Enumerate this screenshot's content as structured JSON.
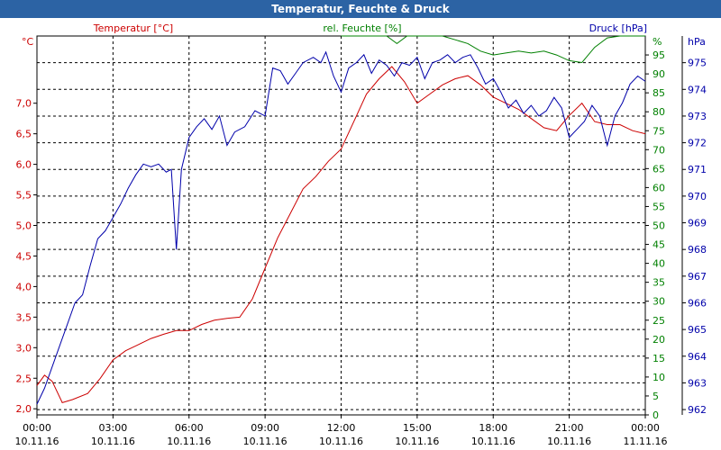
{
  "window": {
    "title": "Temperatur, Feuchte & Druck"
  },
  "colors": {
    "temperature": "#cc0000",
    "humidity": "#008000",
    "pressure": "#0000aa",
    "axis": "#000000",
    "titlebar": "#2c63a4"
  },
  "chart_data": {
    "type": "line",
    "title": "Temperatur, Feuchte & Druck",
    "grid": true,
    "x_ticks": [
      {
        "time": "00:00",
        "date": "10.11.16"
      },
      {
        "time": "03:00",
        "date": "10.11.16"
      },
      {
        "time": "06:00",
        "date": "10.11.16"
      },
      {
        "time": "09:00",
        "date": "10.11.16"
      },
      {
        "time": "12:00",
        "date": "10.11.16"
      },
      {
        "time": "15:00",
        "date": "10.11.16"
      },
      {
        "time": "18:00",
        "date": "10.11.16"
      },
      {
        "time": "21:00",
        "date": "10.11.16"
      },
      {
        "time": "00:00",
        "date": "11.11.16"
      }
    ],
    "xlim_hours": [
      0,
      24
    ],
    "axes": {
      "temperature": {
        "unit": "°C",
        "range": [
          1.9,
          8.1
        ],
        "ticks": [
          "2,0",
          "2,5",
          "3,0",
          "3,5",
          "4,0",
          "4,5",
          "5,0",
          "5,5",
          "6,0",
          "6,5",
          "7,0"
        ]
      },
      "humidity": {
        "unit": "%",
        "range": [
          0,
          100
        ],
        "ticks": [
          "0",
          "5",
          "10",
          "15",
          "20",
          "25",
          "30",
          "35",
          "40",
          "45",
          "50",
          "55",
          "60",
          "65",
          "70",
          "75",
          "80",
          "85",
          "90",
          "95"
        ]
      },
      "pressure": {
        "unit": "hPa",
        "range": [
          961.8,
          976
        ],
        "ticks": [
          "962",
          "963",
          "964",
          "965",
          "966",
          "967",
          "968",
          "969",
          "970",
          "971",
          "972",
          "973",
          "974",
          "975"
        ]
      }
    },
    "series": [
      {
        "name": "Temperatur [°C]",
        "axis": "temperature",
        "points": [
          [
            0,
            2.38
          ],
          [
            0.3,
            2.55
          ],
          [
            0.6,
            2.45
          ],
          [
            1.0,
            2.1
          ],
          [
            1.4,
            2.15
          ],
          [
            2.0,
            2.25
          ],
          [
            2.5,
            2.5
          ],
          [
            3.0,
            2.8
          ],
          [
            3.5,
            2.95
          ],
          [
            4.0,
            3.05
          ],
          [
            4.5,
            3.15
          ],
          [
            5.0,
            3.22
          ],
          [
            5.5,
            3.28
          ],
          [
            6.0,
            3.28
          ],
          [
            6.5,
            3.38
          ],
          [
            7.0,
            3.45
          ],
          [
            7.5,
            3.48
          ],
          [
            8.0,
            3.5
          ],
          [
            8.5,
            3.8
          ],
          [
            9.0,
            4.3
          ],
          [
            9.5,
            4.8
          ],
          [
            10.0,
            5.2
          ],
          [
            10.5,
            5.6
          ],
          [
            11.0,
            5.8
          ],
          [
            11.5,
            6.05
          ],
          [
            12.0,
            6.25
          ],
          [
            12.5,
            6.7
          ],
          [
            13.0,
            7.15
          ],
          [
            13.5,
            7.4
          ],
          [
            14.0,
            7.6
          ],
          [
            14.5,
            7.35
          ],
          [
            15.0,
            7.0
          ],
          [
            15.5,
            7.15
          ],
          [
            16.0,
            7.3
          ],
          [
            16.5,
            7.4
          ],
          [
            17.0,
            7.45
          ],
          [
            17.5,
            7.3
          ],
          [
            18.0,
            7.1
          ],
          [
            18.5,
            7.0
          ],
          [
            19.0,
            6.9
          ],
          [
            19.5,
            6.75
          ],
          [
            20.0,
            6.6
          ],
          [
            20.5,
            6.55
          ],
          [
            21.0,
            6.8
          ],
          [
            21.5,
            7.0
          ],
          [
            22.0,
            6.7
          ],
          [
            22.5,
            6.65
          ],
          [
            23.0,
            6.65
          ],
          [
            23.5,
            6.55
          ],
          [
            24.0,
            6.5
          ]
        ]
      },
      {
        "name": "rel. Feuchte [%]",
        "axis": "humidity",
        "points": [
          [
            12.0,
            100
          ],
          [
            13.0,
            100
          ],
          [
            13.8,
            100
          ],
          [
            14.2,
            98
          ],
          [
            14.6,
            100
          ],
          [
            15.0,
            101
          ],
          [
            15.5,
            103
          ],
          [
            16.0,
            102
          ],
          [
            16.5,
            99
          ],
          [
            17.0,
            98
          ],
          [
            17.5,
            96
          ],
          [
            18.0,
            95
          ],
          [
            18.5,
            95.5
          ],
          [
            19.0,
            96
          ],
          [
            19.5,
            95.5
          ],
          [
            20.0,
            96
          ],
          [
            20.5,
            95
          ],
          [
            21.0,
            93.5
          ],
          [
            21.5,
            93
          ],
          [
            22.0,
            97
          ],
          [
            22.5,
            99.5
          ],
          [
            23.0,
            100
          ],
          [
            23.5,
            100
          ],
          [
            24.0,
            100
          ]
        ]
      },
      {
        "name": "Druck [hPa]",
        "axis": "pressure",
        "points": [
          [
            0,
            962.2
          ],
          [
            0.3,
            962.8
          ],
          [
            0.6,
            963.6
          ],
          [
            0.9,
            964.4
          ],
          [
            1.2,
            965.2
          ],
          [
            1.5,
            966.0
          ],
          [
            1.8,
            966.3
          ],
          [
            2.1,
            967.4
          ],
          [
            2.4,
            968.4
          ],
          [
            2.7,
            968.7
          ],
          [
            3.0,
            969.2
          ],
          [
            3.3,
            969.7
          ],
          [
            3.6,
            970.3
          ],
          [
            3.9,
            970.8
          ],
          [
            4.2,
            971.2
          ],
          [
            4.5,
            971.1
          ],
          [
            4.8,
            971.2
          ],
          [
            5.1,
            970.9
          ],
          [
            5.3,
            971.0
          ],
          [
            5.5,
            968.0
          ],
          [
            5.7,
            971.0
          ],
          [
            6.0,
            972.2
          ],
          [
            6.3,
            972.6
          ],
          [
            6.6,
            972.9
          ],
          [
            6.9,
            972.5
          ],
          [
            7.2,
            973.0
          ],
          [
            7.5,
            971.9
          ],
          [
            7.8,
            972.4
          ],
          [
            8.2,
            972.6
          ],
          [
            8.6,
            973.2
          ],
          [
            9.0,
            973.0
          ],
          [
            9.3,
            974.8
          ],
          [
            9.6,
            974.7
          ],
          [
            9.9,
            974.2
          ],
          [
            10.2,
            974.6
          ],
          [
            10.5,
            975.0
          ],
          [
            10.9,
            975.2
          ],
          [
            11.2,
            975.0
          ],
          [
            11.4,
            975.4
          ],
          [
            11.7,
            974.5
          ],
          [
            12.0,
            973.9
          ],
          [
            12.3,
            974.8
          ],
          [
            12.6,
            975.0
          ],
          [
            12.9,
            975.3
          ],
          [
            13.2,
            974.6
          ],
          [
            13.5,
            975.1
          ],
          [
            13.8,
            974.9
          ],
          [
            14.1,
            974.5
          ],
          [
            14.4,
            975.0
          ],
          [
            14.7,
            974.9
          ],
          [
            15.0,
            975.2
          ],
          [
            15.3,
            974.4
          ],
          [
            15.6,
            975.0
          ],
          [
            15.9,
            975.1
          ],
          [
            16.2,
            975.3
          ],
          [
            16.5,
            975.0
          ],
          [
            16.8,
            975.2
          ],
          [
            17.1,
            975.3
          ],
          [
            17.4,
            974.8
          ],
          [
            17.7,
            974.2
          ],
          [
            18.0,
            974.4
          ],
          [
            18.3,
            973.9
          ],
          [
            18.6,
            973.3
          ],
          [
            18.9,
            973.6
          ],
          [
            19.2,
            973.1
          ],
          [
            19.5,
            973.4
          ],
          [
            19.8,
            973.0
          ],
          [
            20.1,
            973.2
          ],
          [
            20.4,
            973.7
          ],
          [
            20.7,
            973.3
          ],
          [
            21.0,
            972.2
          ],
          [
            21.3,
            972.5
          ],
          [
            21.6,
            972.8
          ],
          [
            21.9,
            973.4
          ],
          [
            22.2,
            973.0
          ],
          [
            22.5,
            971.9
          ],
          [
            22.8,
            973.0
          ],
          [
            23.1,
            973.5
          ],
          [
            23.4,
            974.2
          ],
          [
            23.7,
            974.5
          ],
          [
            24.0,
            974.3
          ]
        ]
      }
    ]
  }
}
